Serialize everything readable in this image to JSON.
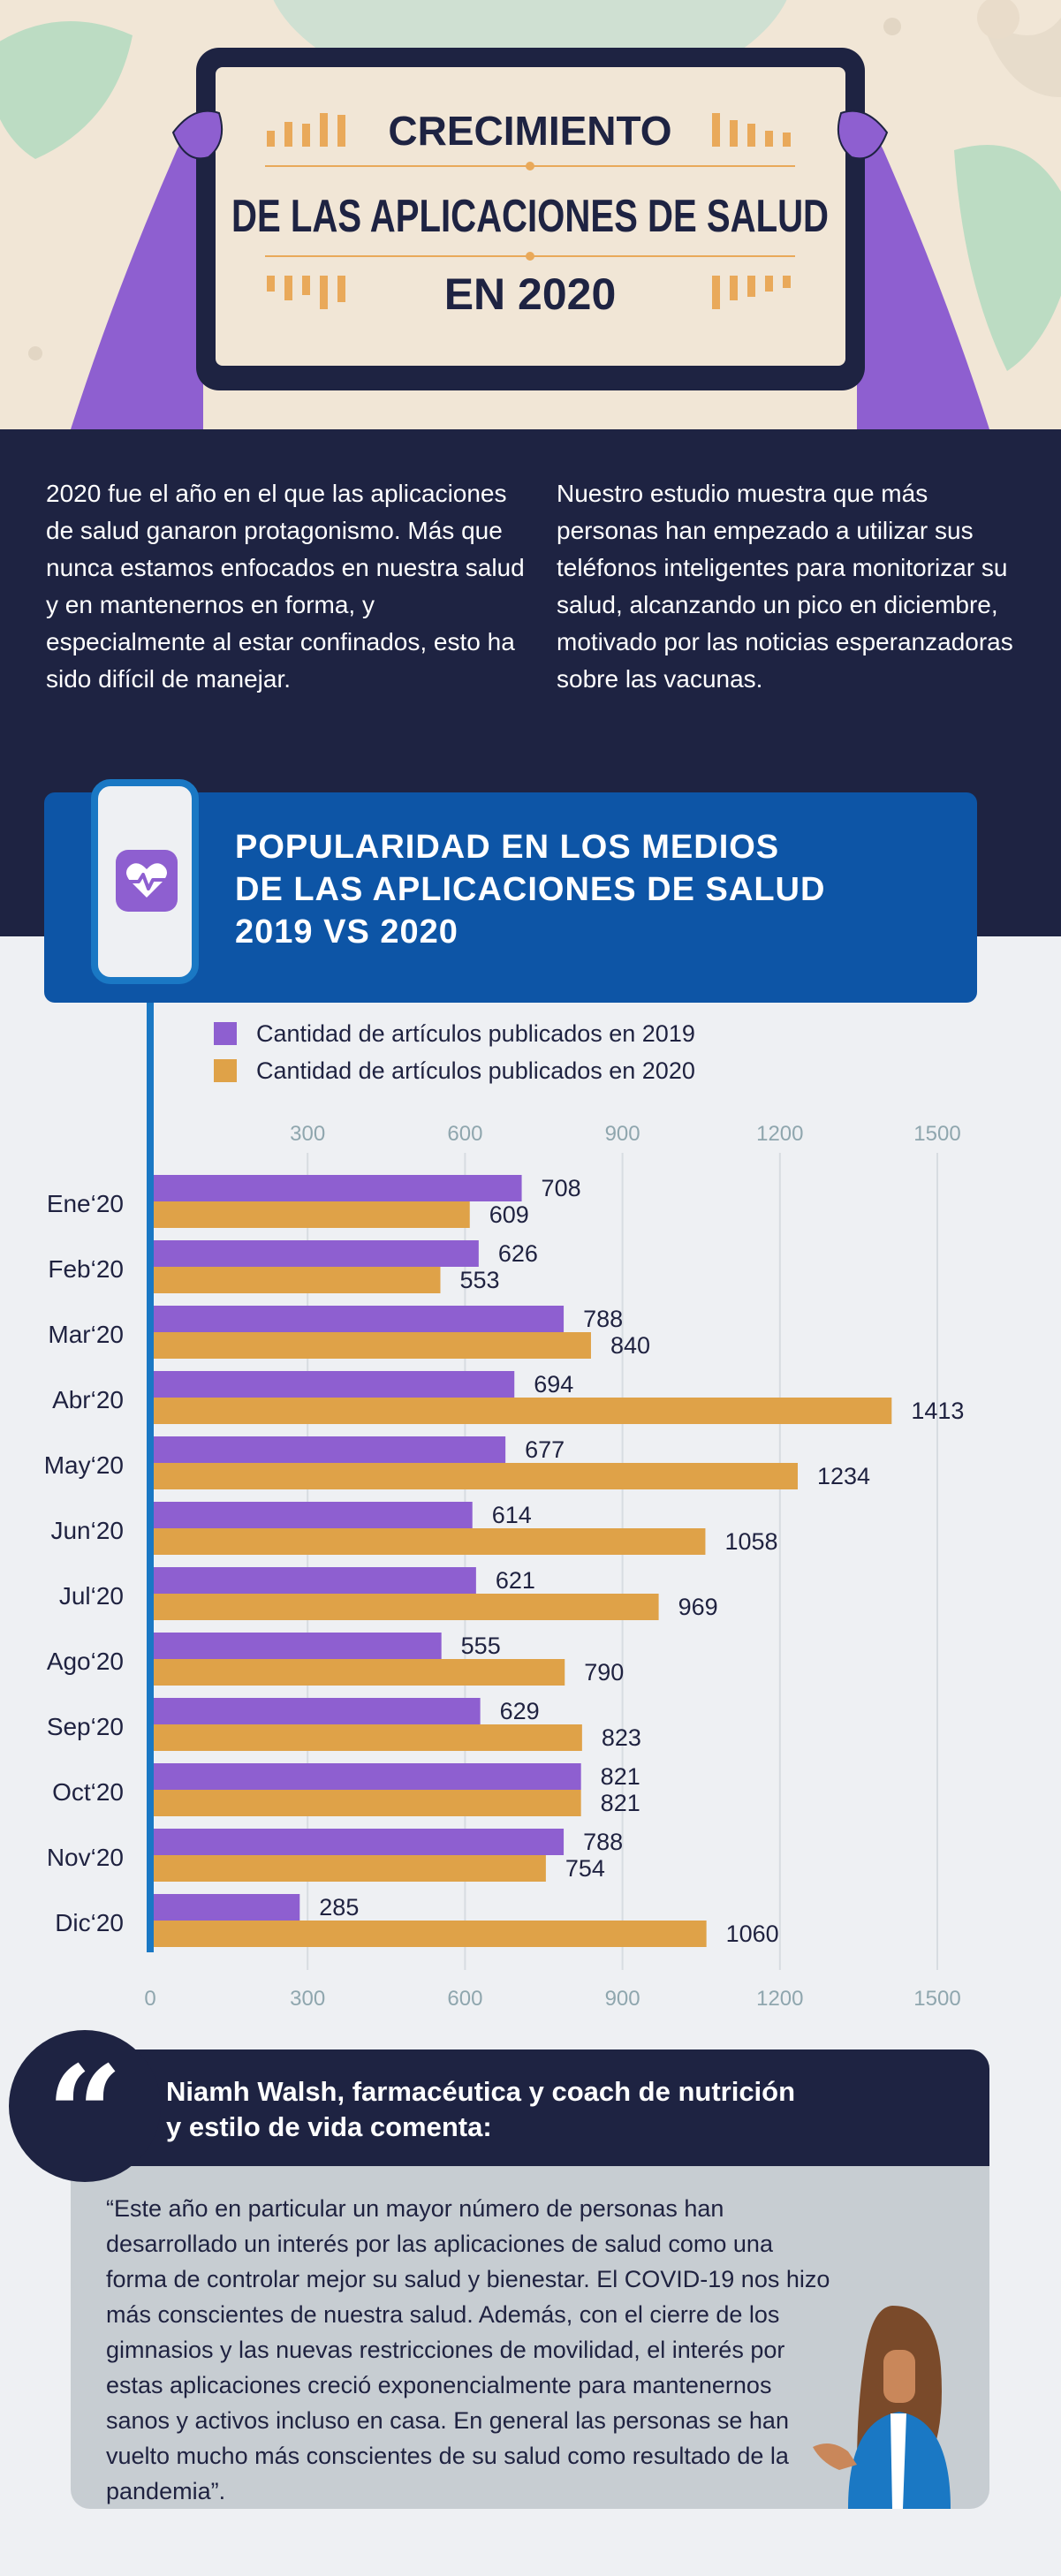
{
  "hero": {
    "title_line1": "CRECIMIENTO",
    "title_line2": "DE LAS APLICACIONES DE SALUD",
    "title_line3": "EN 2020"
  },
  "intro": {
    "left": "2020 fue el año en el que las aplicaciones de salud ganaron protagonismo. Más que nunca estamos enfocados en nuestra salud y en mantenernos en forma, y especialmente al estar confinados, esto ha sido difícil de manejar.",
    "right": "Nuestro estudio muestra que más personas han empezado a utilizar sus teléfonos inteligentes  para monitorizar su salud, alcanzando un pico en diciembre, motivado por las noticias esperanzadoras sobre las vacunas."
  },
  "banner": {
    "title": "POPULARIDAD EN LOS MEDIOS\nDE LAS APLICACIONES DE SALUD\n2019 VS 2020",
    "icon": "heart-pulse-icon"
  },
  "colors": {
    "series2019": "#8e5fd0",
    "series2020": "#dfa248",
    "navy": "#1e2342",
    "blue": "#0d55a6",
    "axis": "#1a78c4",
    "tick": "#8fa6ae"
  },
  "chart_data": {
    "type": "bar",
    "orientation": "horizontal",
    "title": "POPULARIDAD EN LOS MEDIOS DE LAS APLICACIONES DE SALUD 2019 VS 2020",
    "categories": [
      "Ene‘20",
      "Feb‘20",
      "Mar‘20",
      "Abr‘20",
      "May‘20",
      "Jun‘20",
      "Jul‘20",
      "Ago‘20",
      "Sep‘20",
      "Oct‘20",
      "Nov‘20",
      "Dic‘20"
    ],
    "series": [
      {
        "name": "Cantidad de artículos publicados en 2019",
        "color": "#8e5fd0",
        "values": [
          708,
          626,
          788,
          694,
          677,
          614,
          621,
          555,
          629,
          821,
          788,
          285
        ]
      },
      {
        "name": "Cantidad de artículos publicados en 2020",
        "color": "#dfa248",
        "values": [
          609,
          553,
          840,
          1413,
          1234,
          1058,
          969,
          790,
          823,
          821,
          754,
          1060
        ]
      }
    ],
    "xlim": [
      0,
      1500
    ],
    "top_ticks": [
      "300",
      "600",
      "900",
      "1200",
      "1500"
    ],
    "bottom_ticks": [
      "0",
      "300",
      "600",
      "900",
      "1200",
      "1500"
    ],
    "grid": true,
    "legend_position": "top-left"
  },
  "quote": {
    "mark": "“",
    "author": "Niamh Walsh, farmacéutica y coach de nutrición\ny estilo de vida comenta:",
    "text": "“Este año en particular un mayor número de personas han desarrollado un interés por las aplicaciones de salud como una forma de controlar mejor su salud y bienestar. El COVID-19 nos hizo más conscientes de nuestra salud. Además, con el cierre de los gimnasios y las nuevas restricciones de movilidad, el interés por estas aplicaciones creció exponencialmente para mantenernos sanos y activos incluso en casa. En general las personas se han vuelto mucho más conscientes de su salud como resultado de la pandemia”."
  }
}
